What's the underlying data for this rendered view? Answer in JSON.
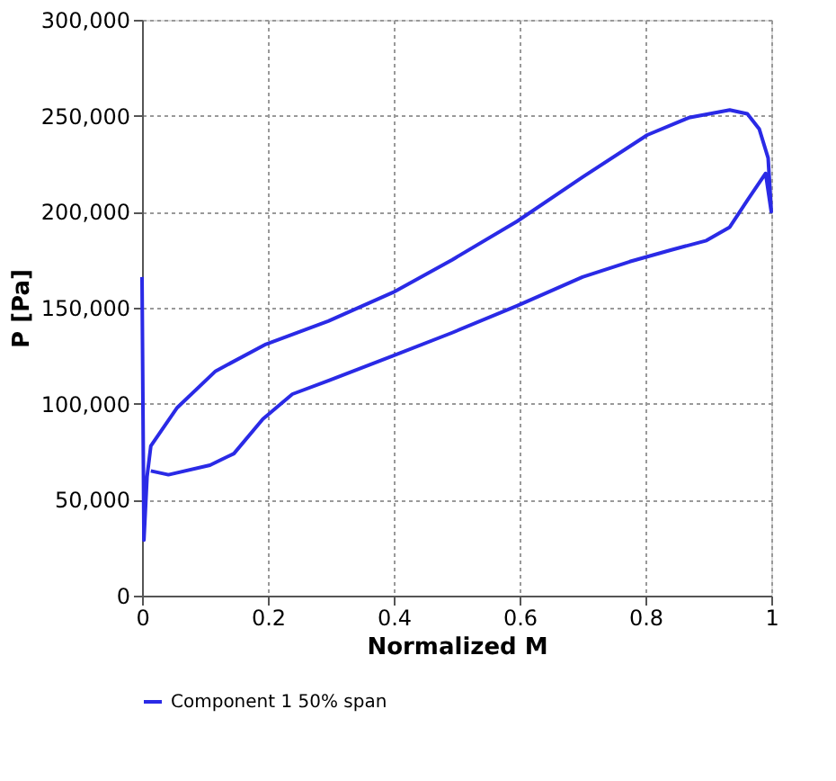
{
  "chart_data": {
    "type": "line",
    "xlabel": "Normalized M",
    "ylabel": "P [Pa]",
    "xlim": [
      0,
      1
    ],
    "xticks": [
      0,
      0.2,
      0.4,
      0.6,
      0.8,
      1
    ],
    "ylim": [
      0,
      300000
    ],
    "yticks": [
      {
        "value": 0,
        "label": "0"
      },
      {
        "value": 50000,
        "label": "50,000"
      },
      {
        "value": 100000,
        "label": "100,000"
      },
      {
        "value": 150000,
        "label": "150,000"
      },
      {
        "value": 200000,
        "label": "200,000"
      },
      {
        "value": 250000,
        "label": "250,000"
      },
      {
        "value": 300000,
        "label": "300,000"
      }
    ],
    "grid": true,
    "legend": "bottom",
    "line_style": "solid",
    "marker": "none",
    "series": [
      {
        "name": "Component 1 50% span",
        "color": "#2a2ae6",
        "x": [
          0,
          0.003,
          0.008,
          0.014,
          0.056,
          0.117,
          0.197,
          0.296,
          0.399,
          0.493,
          0.596,
          0.7,
          0.803,
          0.869,
          0.934,
          0.962,
          0.981,
          0.995,
          1.0,
          0.991,
          0.962,
          0.934,
          0.897,
          0.84,
          0.775,
          0.7,
          0.596,
          0.493,
          0.399,
          0.296,
          0.239,
          0.192,
          0.146,
          0.108,
          0.042,
          0.014
        ],
        "values": [
          166000,
          29000,
          62000,
          78000,
          98000,
          117000,
          131000,
          143000,
          158000,
          175000,
          195000,
          218000,
          240000,
          249000,
          253000,
          251000,
          243000,
          228000,
          200000,
          220000,
          206000,
          192000,
          185000,
          180000,
          174000,
          166000,
          151000,
          137000,
          125000,
          112000,
          105000,
          92000,
          74000,
          68000,
          63000,
          65000
        ]
      }
    ]
  }
}
